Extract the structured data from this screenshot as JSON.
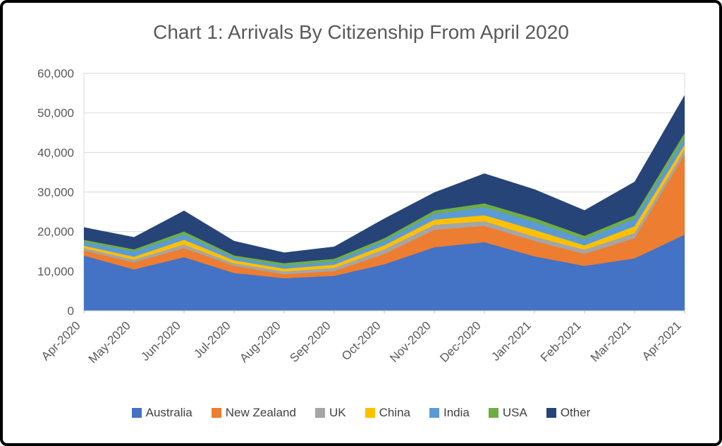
{
  "title": "Chart 1: Arrivals By Citizenship From April 2020",
  "chart_data": {
    "type": "area",
    "stacked": true,
    "title": "Chart 1: Arrivals By Citizenship From April 2020",
    "x": [
      "Apr-2020",
      "May-2020",
      "Jun-2020",
      "Jul-2020",
      "Aug-2020",
      "Sep-2020",
      "Oct-2020",
      "Nov-2020",
      "Dec-2020",
      "Jan-2021",
      "Feb-2021",
      "Mar-2021",
      "Apr-2021"
    ],
    "series": [
      {
        "name": "Australia",
        "color": "#4472C4",
        "values": [
          13900,
          10400,
          13500,
          9500,
          8200,
          8800,
          11700,
          16000,
          17300,
          13700,
          11300,
          13200,
          19200
        ]
      },
      {
        "name": "New Zealand",
        "color": "#ED7D31",
        "values": [
          1300,
          1800,
          2300,
          1800,
          1000,
          1200,
          2600,
          4400,
          4100,
          3900,
          3000,
          5100,
          20300
        ]
      },
      {
        "name": "UK",
        "color": "#A5A5A5",
        "values": [
          600,
          700,
          900,
          650,
          700,
          800,
          1200,
          1300,
          1200,
          1100,
          1100,
          1300,
          1200
        ]
      },
      {
        "name": "China",
        "color": "#FFC000",
        "values": [
          600,
          700,
          1200,
          750,
          700,
          800,
          1000,
          1300,
          1500,
          1700,
          1100,
          1700,
          1200
        ]
      },
      {
        "name": "India",
        "color": "#5B9BD5",
        "values": [
          1000,
          1300,
          1300,
          750,
          700,
          800,
          1100,
          1400,
          2000,
          2000,
          1500,
          1900,
          1700
        ]
      },
      {
        "name": "USA",
        "color": "#70AD47",
        "values": [
          500,
          600,
          800,
          500,
          700,
          700,
          700,
          900,
          1000,
          1000,
          900,
          900,
          1300
        ]
      },
      {
        "name": "Other",
        "color": "#264478",
        "values": [
          3200,
          3100,
          5300,
          3700,
          2700,
          3100,
          5000,
          4600,
          7600,
          7300,
          6500,
          8500,
          9600
        ]
      }
    ],
    "totals": [
      21100,
      18600,
      25300,
      17650,
      14700,
      16200,
      23300,
      29900,
      34700,
      30700,
      25400,
      32600,
      54500
    ],
    "ylim": [
      0,
      60000
    ],
    "ytick_step": 10000,
    "ytick_labels": [
      "0",
      "10,000",
      "20,000",
      "30,000",
      "40,000",
      "50,000",
      "60,000"
    ],
    "xlabel": "",
    "ylabel": "",
    "grid": true,
    "legend_position": "bottom",
    "axis_color": "#BFBFBF",
    "grid_color": "#D9D9D9",
    "tick_label_color": "#595959"
  }
}
